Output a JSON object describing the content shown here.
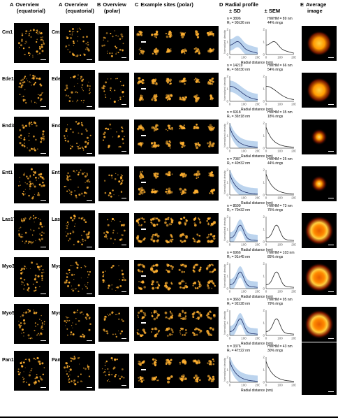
{
  "headers": {
    "a1": {
      "letter": "A",
      "text": "Overview",
      "sub": "(equatorial)"
    },
    "a2": {
      "letter": "A",
      "text": "Overview",
      "sub": "(equatorial)"
    },
    "b": {
      "letter": "B",
      "text": "Overview",
      "sub": "(polar)"
    },
    "c": {
      "letter": "C",
      "text": "Example sites (polar)"
    },
    "d": {
      "letter": "D",
      "text": "Radial profile",
      "sub_left": "± SD",
      "sub_right": "± SEM"
    },
    "e": {
      "letter": "E",
      "text": "Average",
      "sub": "image"
    }
  },
  "axis": {
    "ylabel": "Normalized density",
    "xlabel": "Radial distance (nm)",
    "yticks": [
      "0",
      "1",
      "2"
    ],
    "xticks": [
      "0",
      "100",
      "200"
    ]
  },
  "rows": [
    {
      "name": "Cm1",
      "n": "n = 3896",
      "rc": "Rₓ = 90±26 nm",
      "hwhm": "HWHM = 89 nm",
      "rings": "44% rings",
      "profile": "dip"
    },
    {
      "name": "Ede1",
      "n": "n = 14219",
      "rc": "Rₓ = 66±30 nm",
      "hwhm": "HWHM = 66 nm",
      "rings": "54% rings",
      "profile": "flat"
    },
    {
      "name": "End3",
      "n": "n = 6918",
      "rc": "Rₓ = 36±18 nm",
      "hwhm": "HWHM = 35 nm",
      "rings": "18% rings",
      "profile": "decay"
    },
    {
      "name": "Ent1",
      "n": "n = 7087",
      "rc": "Rₓ = 40±32 nm",
      "hwhm": "HWHM = 25 nm",
      "rings": "44% rings",
      "profile": "decay"
    },
    {
      "name": "Las17",
      "n": "n = 8599",
      "rc": "Rₓ = 70±32 nm",
      "hwhm": "HWHM = 73 nm",
      "rings": "75% rings",
      "profile": "ring"
    },
    {
      "name": "Myo3",
      "n": "n = 6966",
      "rc": "Rₓ = 91±45 nm",
      "hwhm": "HWHM = 103 nm",
      "rings": "85% rings",
      "profile": "ring"
    },
    {
      "name": "Myo5",
      "n": "n = 3663",
      "rc": "Rₓ = 92±28 nm",
      "hwhm": "HWHM = 95 nm",
      "rings": "79% rings",
      "profile": "ring"
    },
    {
      "name": "Pan1",
      "n": "n = 3376",
      "rc": "Rₓ = 47±22 nm",
      "hwhm": "HWHM = 43 nm",
      "rings": "30% rings",
      "profile": "decay"
    }
  ],
  "colors": {
    "density": "#ffb030",
    "band": "#bcd4ee",
    "mean": "#1a2a66"
  }
}
